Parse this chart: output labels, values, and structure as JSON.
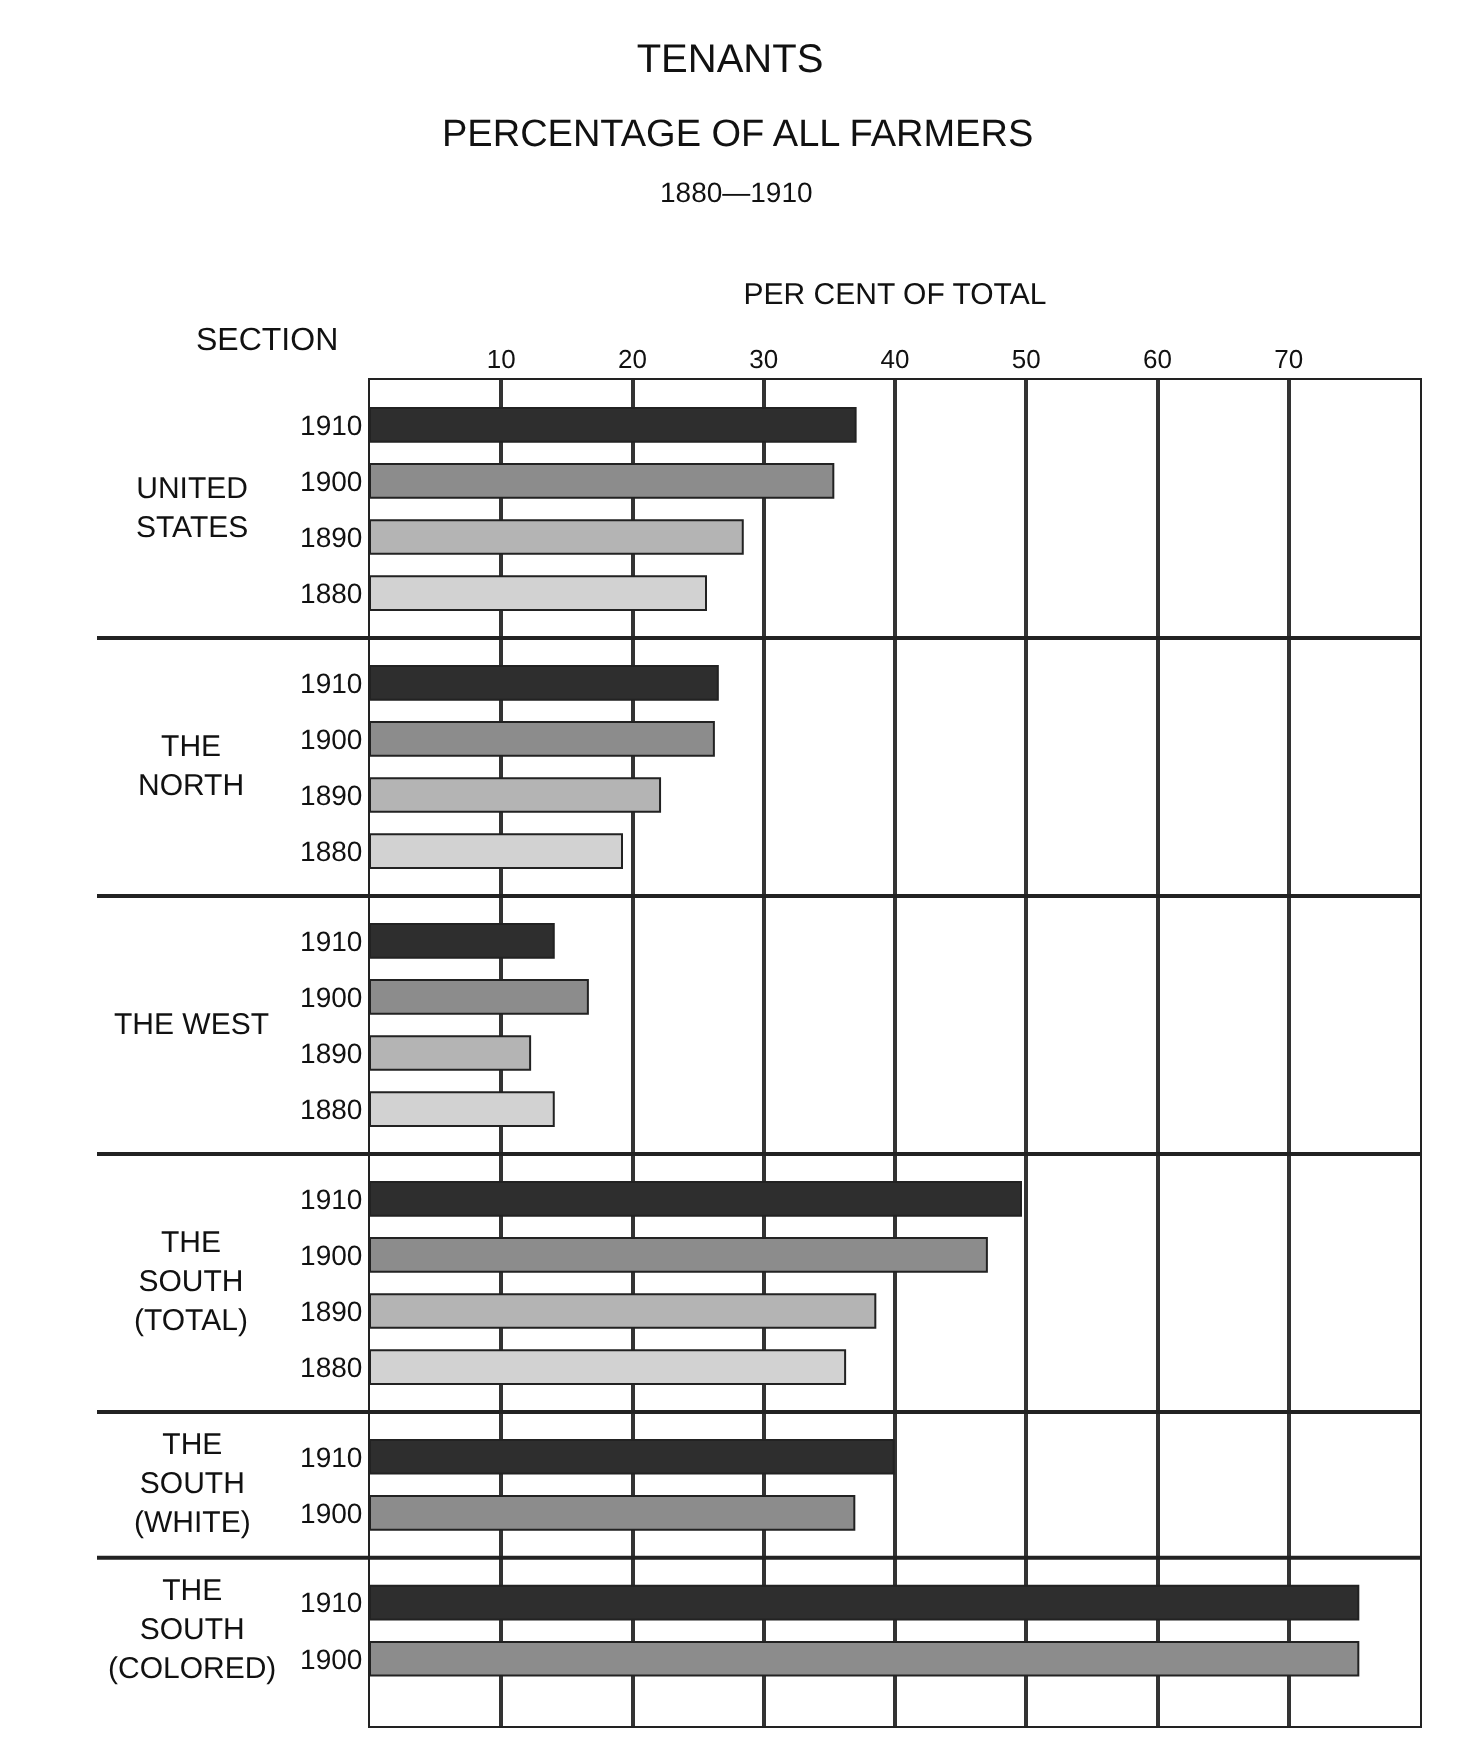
{
  "chart_data": {
    "type": "bar",
    "orientation": "horizontal",
    "title": "TENANTS",
    "subtitle": "PERCENTAGE OF ALL FARMERS",
    "annotations": [
      "1880—1910",
      "SECTION"
    ],
    "xlabel": "PER CENT OF TOTAL",
    "categories": [
      "UNITED STATES",
      "THE NORTH",
      "THE WEST",
      "THE SOUTH (TOTAL)",
      "THE SOUTH (WHITE)",
      "THE SOUTH (COLORED)"
    ],
    "series": [
      {
        "name": "1910",
        "color": "#2e2e2e",
        "values": [
          37.0,
          26.5,
          14.0,
          49.6,
          39.9,
          75.3
        ]
      },
      {
        "name": "1900",
        "color": "#8c8c8c",
        "values": [
          35.3,
          26.2,
          16.6,
          47.0,
          36.9,
          75.3
        ]
      },
      {
        "name": "1890",
        "color": "#b4b4b4",
        "values": [
          28.4,
          22.1,
          12.2,
          38.5,
          null,
          null
        ]
      },
      {
        "name": "1880",
        "color": "#d2d2d2",
        "values": [
          25.6,
          19.2,
          14.0,
          36.2,
          null,
          null
        ]
      }
    ],
    "xlim": [
      0,
      80
    ],
    "xticks": [
      10,
      20,
      30,
      40,
      50,
      60,
      70
    ],
    "grid": "x"
  }
}
